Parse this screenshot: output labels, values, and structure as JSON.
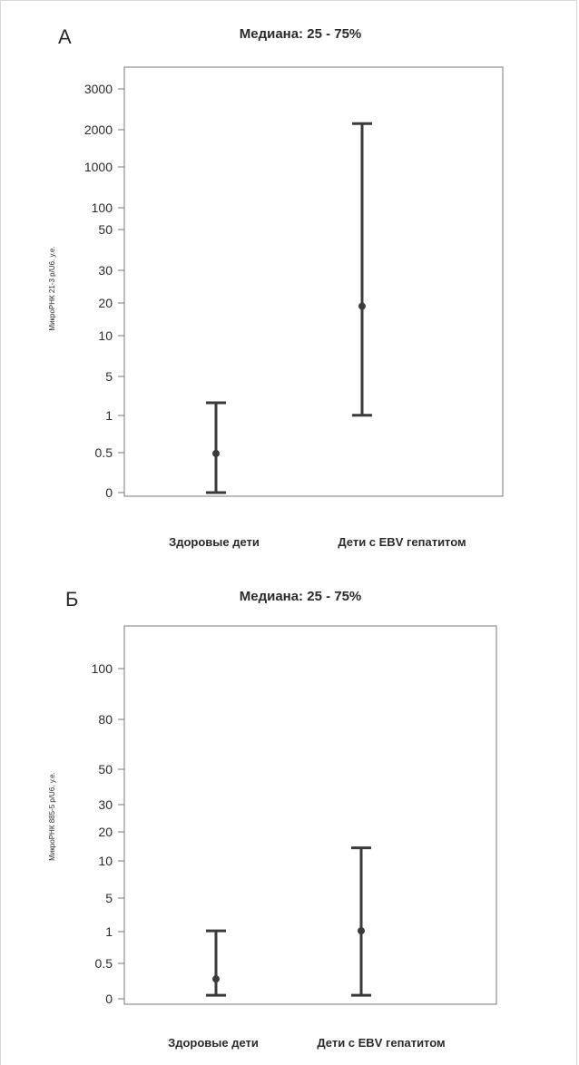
{
  "chart_data": [
    {
      "type": "error-bar",
      "panel_label": "А",
      "title": "Медиана: 25 - 75%",
      "ylabel": "МикроРНК 21-3 p/U6. у.е.",
      "xlabel": "",
      "y_ticks": [
        "3000",
        "2000",
        "1000",
        "100",
        "50",
        "30",
        "20",
        "10",
        "5",
        "1",
        "0.5",
        "0"
      ],
      "categories": [
        "Здоровые дети",
        "Дети с EBV гепатитом"
      ],
      "series": [
        {
          "median": [
            0.49,
            19
          ],
          "q25": [
            0,
            1.02
          ],
          "q75": [
            2.3,
            2150
          ]
        }
      ],
      "grid": false,
      "legend": "none"
    },
    {
      "type": "error-bar",
      "panel_label": "Б",
      "title": "Медиана: 25 - 75%",
      "ylabel": "МикроРНК 885-5 p/U6. у.е.",
      "xlabel": "",
      "y_ticks": [
        "100",
        "80",
        "50",
        "30",
        "20",
        "10",
        "5",
        "1",
        "0.5",
        "0"
      ],
      "categories": [
        "Здоровые дети",
        "Дети с EBV гепатитом"
      ],
      "series": [
        {
          "median": [
            0.28,
            1.1
          ],
          "q25": [
            0.05,
            0.05
          ],
          "q75": [
            1.1,
            14.5
          ]
        }
      ],
      "grid": false,
      "legend": "none"
    }
  ],
  "colors": {
    "line": "#3a3a3a",
    "axis": "#7a7a7a",
    "text": "#2a2a2a"
  }
}
